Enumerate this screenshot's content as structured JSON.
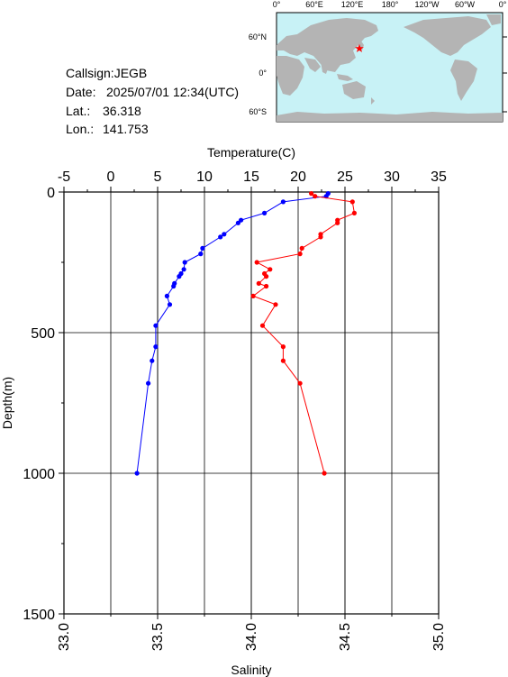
{
  "station": {
    "callsign_label": "Callsign:",
    "callsign": "JEGB",
    "date_label": "Date:",
    "date": "2025/07/01 12:34(UTC)",
    "lat_label": "Lat.:",
    "lat": "36.318",
    "lon_label": "Lon.:",
    "lon": "141.753"
  },
  "map": {
    "top_ticks": [
      "0°",
      "60°E",
      "120°E",
      "180°",
      "120°W",
      "60°W",
      "0°"
    ],
    "left_ticks": [
      "60°N",
      "0°",
      "60°S"
    ],
    "ocean_color": "#c8f2f6",
    "land_color": "#b4b4b4",
    "marker_color": "#ff0000"
  },
  "chart_data": {
    "type": "line",
    "xlabel_top": "Temperature(C)",
    "xlabel_bottom": "Salinity",
    "ylabel": "Depth(m)",
    "temperature_ticks": [
      "-5",
      "0",
      "5",
      "10",
      "15",
      "20",
      "25",
      "30",
      "35"
    ],
    "temperature_range": [
      -5,
      35
    ],
    "salinity_ticks": [
      "33.0",
      "33.5",
      "34.0",
      "34.5",
      "35.0"
    ],
    "salinity_range": [
      33.0,
      35.0
    ],
    "depth_ticks": [
      "0",
      "500",
      "1000",
      "1500"
    ],
    "depth_range": [
      0,
      1500
    ],
    "grid": true,
    "series": [
      {
        "color": "#0000ff",
        "axis": "temperature",
        "points": [
          [
            23.2,
            5
          ],
          [
            23.0,
            15
          ],
          [
            18.4,
            35
          ],
          [
            16.4,
            75
          ],
          [
            13.9,
            100
          ],
          [
            13.6,
            110
          ],
          [
            12.1,
            150
          ],
          [
            11.7,
            160
          ],
          [
            9.8,
            200
          ],
          [
            9.6,
            220
          ],
          [
            7.9,
            250
          ],
          [
            7.8,
            275
          ],
          [
            7.5,
            290
          ],
          [
            7.3,
            300
          ],
          [
            6.8,
            325
          ],
          [
            6.7,
            335
          ],
          [
            6.0,
            370
          ],
          [
            6.3,
            400
          ],
          [
            4.8,
            475
          ],
          [
            4.8,
            550
          ],
          [
            4.4,
            600
          ],
          [
            4.0,
            680
          ],
          [
            2.8,
            1000
          ]
        ]
      },
      {
        "color": "#ff0000",
        "axis": "salinity",
        "points": [
          [
            34.32,
            5
          ],
          [
            34.34,
            15
          ],
          [
            34.54,
            35
          ],
          [
            34.55,
            75
          ],
          [
            34.46,
            100
          ],
          [
            34.46,
            110
          ],
          [
            34.37,
            150
          ],
          [
            34.37,
            160
          ],
          [
            34.27,
            200
          ],
          [
            34.26,
            220
          ],
          [
            34.03,
            250
          ],
          [
            34.1,
            275
          ],
          [
            34.07,
            290
          ],
          [
            34.08,
            300
          ],
          [
            34.04,
            325
          ],
          [
            34.08,
            335
          ],
          [
            34.01,
            370
          ],
          [
            34.13,
            400
          ],
          [
            34.06,
            475
          ],
          [
            34.17,
            550
          ],
          [
            34.17,
            600
          ],
          [
            34.26,
            680
          ],
          [
            34.39,
            1000
          ]
        ]
      }
    ]
  }
}
